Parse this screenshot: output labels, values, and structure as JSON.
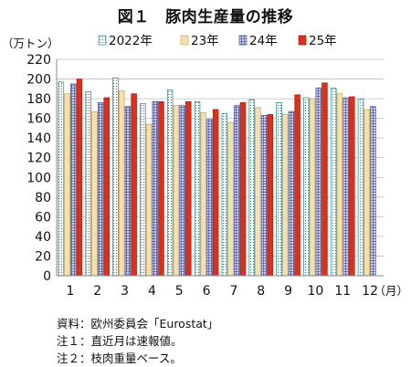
{
  "title": "図１　豚肉生産量の推移",
  "chart_data": {
    "type": "bar",
    "ylabel": "（万トン）",
    "xunit": "（月）",
    "ylim": [
      0,
      220
    ],
    "yticks": [
      0,
      20,
      40,
      60,
      80,
      100,
      120,
      140,
      160,
      180,
      200,
      220
    ],
    "grid": true,
    "legend_position": "top",
    "categories": [
      "1",
      "2",
      "3",
      "4",
      "5",
      "6",
      "7",
      "8",
      "9",
      "10",
      "11",
      "12"
    ],
    "series": [
      {
        "name": "2022年",
        "values": [
          197,
          187,
          201,
          175,
          189,
          177,
          165,
          179,
          176,
          181,
          191,
          180
        ],
        "color": "#ffffff",
        "pattern": "dots"
      },
      {
        "name": "23年",
        "values": [
          185,
          167,
          188,
          154,
          173,
          166,
          156,
          171,
          164,
          180,
          185,
          169
        ],
        "color": "#f3dfb0",
        "pattern": "none"
      },
      {
        "name": "24年",
        "values": [
          195,
          176,
          172,
          177,
          173,
          159,
          173,
          163,
          167,
          191,
          181,
          172
        ],
        "color": "#c9cfe8",
        "pattern": "grid"
      },
      {
        "name": "25年",
        "values": [
          200,
          181,
          185,
          177,
          177,
          169,
          176,
          164,
          184,
          196,
          182,
          null
        ],
        "color": "#d9311c",
        "pattern": "none"
      }
    ]
  },
  "notes": [
    "資料：欧州委員会「Eurostat」",
    "注１：直近月は速報値。",
    "注２：枝肉重量ベース。"
  ]
}
